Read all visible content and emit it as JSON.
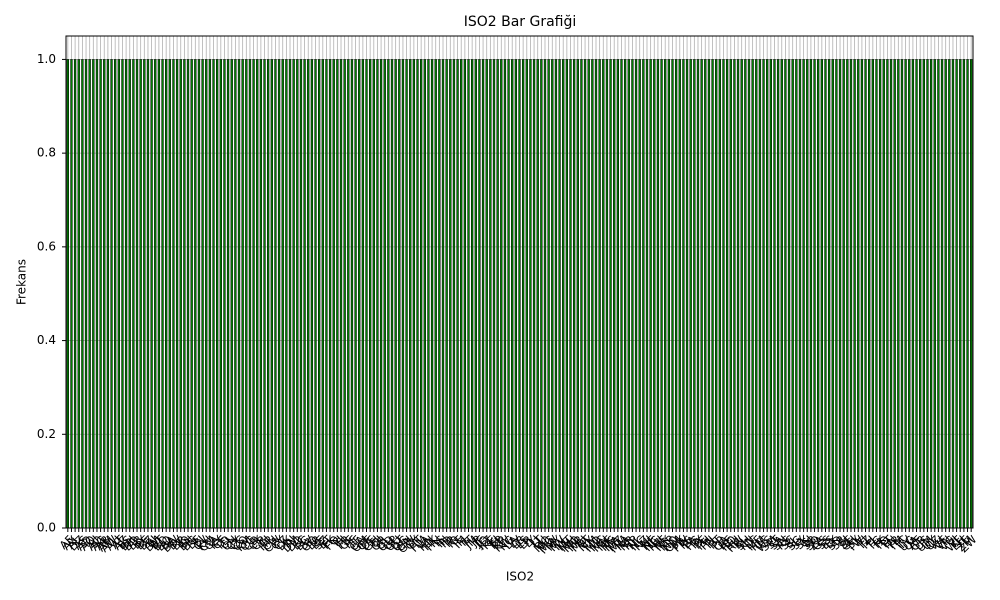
{
  "chart_data": {
    "type": "bar",
    "title": "ISO2 Bar Grafiği",
    "x_label": "ISO2",
    "y_label": "Frekans",
    "categories": [
      "AF",
      "AX",
      "AL",
      "DZ",
      "AS",
      "AD",
      "AO",
      "AI",
      "AQ",
      "AG",
      "AR",
      "AM",
      "AW",
      "AU",
      "AT",
      "AZ",
      "BS",
      "BH",
      "BD",
      "BB",
      "BY",
      "BE",
      "BZ",
      "BJ",
      "BM",
      "BT",
      "BO",
      "BQ",
      "BA",
      "BW",
      "BV",
      "BR",
      "IO",
      "BN",
      "BG",
      "BF",
      "BI",
      "CV",
      "KH",
      "CM",
      "CA",
      "KY",
      "CF",
      "TD",
      "CL",
      "CN",
      "CX",
      "CC",
      "CO",
      "KM",
      "CG",
      "CD",
      "CK",
      "CR",
      "CI",
      "HR",
      "CU",
      "CW",
      "CY",
      "CZ",
      "DK",
      "DJ",
      "DM",
      "DO",
      "EC",
      "EG",
      "SV",
      "GQ",
      "ER",
      "EE",
      "SZ",
      "ET",
      "FK",
      "FO",
      "FJ",
      "FI",
      "FR",
      "GF",
      "PF",
      "TF",
      "GA",
      "GM",
      "GE",
      "DE",
      "GH",
      "GI",
      "GR",
      "GL",
      "GD",
      "GP",
      "GU",
      "GT",
      "GG",
      "GN",
      "GW",
      "GY",
      "HT",
      "HM",
      "VA",
      "HN",
      "HK",
      "HU",
      "IS",
      "IN",
      "ID",
      "IR",
      "IQ",
      "IE",
      "IM",
      "IL",
      "IT",
      "JM",
      "JP",
      "JE",
      "JO",
      "KZ",
      "KE",
      "KI",
      "KP",
      "KR",
      "KW",
      "KG",
      "LA",
      "LV",
      "LB",
      "LS",
      "LR",
      "LY",
      "LI",
      "LT",
      "LU",
      "MO",
      "MG",
      "MW",
      "MY",
      "MV",
      "ML",
      "MT",
      "MH",
      "MQ",
      "MR",
      "MU",
      "YT",
      "MX",
      "FM",
      "MD",
      "MC",
      "MN",
      "ME",
      "MS",
      "MA",
      "MZ",
      "MM",
      "NA",
      "NR",
      "NP",
      "NL",
      "NC",
      "NZ",
      "NI",
      "NE",
      "NG",
      "NU",
      "NF",
      "MK",
      "MP",
      "NO",
      "OM",
      "PK",
      "PW",
      "PS",
      "PA",
      "PG",
      "PY",
      "PE",
      "PH",
      "PN",
      "PL",
      "PT",
      "PR",
      "QA",
      "RE",
      "RO",
      "RU",
      "RW",
      "BL",
      "SH",
      "KN",
      "LC",
      "MF",
      "PM",
      "VC",
      "WS",
      "SM",
      "ST",
      "SA",
      "SN",
      "RS",
      "SC",
      "SL",
      "SG",
      "SX",
      "SK",
      "SI",
      "SB",
      "SO",
      "ZA",
      "GS",
      "SS",
      "ES",
      "LK",
      "SD",
      "SR",
      "SJ",
      "SE",
      "CH",
      "SY",
      "TW",
      "TJ",
      "TZ",
      "TH",
      "TL",
      "TG",
      "TK",
      "TO",
      "TT",
      "TN",
      "TR",
      "TM",
      "TC",
      "TV",
      "UG",
      "UA",
      "AE",
      "GB",
      "US",
      "UM",
      "UY",
      "UZ",
      "VU",
      "VE",
      "VN",
      "VG",
      "VI",
      "WF",
      "EH",
      "YE",
      "ZM",
      "ZW"
    ],
    "values": [
      1,
      1,
      1,
      1,
      1,
      1,
      1,
      1,
      1,
      1,
      1,
      1,
      1,
      1,
      1,
      1,
      1,
      1,
      1,
      1,
      1,
      1,
      1,
      1,
      1,
      1,
      1,
      1,
      1,
      1,
      1,
      1,
      1,
      1,
      1,
      1,
      1,
      1,
      1,
      1,
      1,
      1,
      1,
      1,
      1,
      1,
      1,
      1,
      1,
      1,
      1,
      1,
      1,
      1,
      1,
      1,
      1,
      1,
      1,
      1,
      1,
      1,
      1,
      1,
      1,
      1,
      1,
      1,
      1,
      1,
      1,
      1,
      1,
      1,
      1,
      1,
      1,
      1,
      1,
      1,
      1,
      1,
      1,
      1,
      1,
      1,
      1,
      1,
      1,
      1,
      1,
      1,
      1,
      1,
      1,
      1,
      1,
      1,
      1,
      1,
      1,
      1,
      1,
      1,
      1,
      1,
      1,
      1,
      1,
      1,
      1,
      1,
      1,
      1,
      1,
      1,
      1,
      1,
      1,
      1,
      1,
      1,
      1,
      1,
      1,
      1,
      1,
      1,
      1,
      1,
      1,
      1,
      1,
      1,
      1,
      1,
      1,
      1,
      1,
      1,
      1,
      1,
      1,
      1,
      1,
      1,
      1,
      1,
      1,
      1,
      1,
      1,
      1,
      1,
      1,
      1,
      1,
      1,
      1,
      1,
      1,
      1,
      1,
      1,
      1,
      1,
      1,
      1,
      1,
      1,
      1,
      1,
      1,
      1,
      1,
      1,
      1,
      1,
      1,
      1,
      1,
      1,
      1,
      1,
      1,
      1,
      1,
      1,
      1,
      1,
      1,
      1,
      1,
      1,
      1,
      1,
      1,
      1,
      1,
      1,
      1,
      1,
      1,
      1,
      1,
      1,
      1,
      1,
      1,
      1,
      1,
      1,
      1,
      1,
      1,
      1,
      1,
      1,
      1,
      1,
      1,
      1,
      1,
      1,
      1,
      1,
      1,
      1,
      1,
      1,
      1,
      1,
      1,
      1,
      1,
      1,
      1,
      1,
      1,
      1,
      1,
      1,
      1,
      1,
      1,
      1,
      1,
      1,
      1
    ],
    "color": "#008000",
    "edgecolor": "#000000",
    "ylim": [
      0,
      1.05
    ],
    "yticks": [
      {
        "value": 0,
        "label": "0.0"
      },
      0.2,
      0.4,
      0.6,
      0.8,
      {
        "value": 1,
        "label": "1.0"
      }
    ],
    "grid": true
  }
}
